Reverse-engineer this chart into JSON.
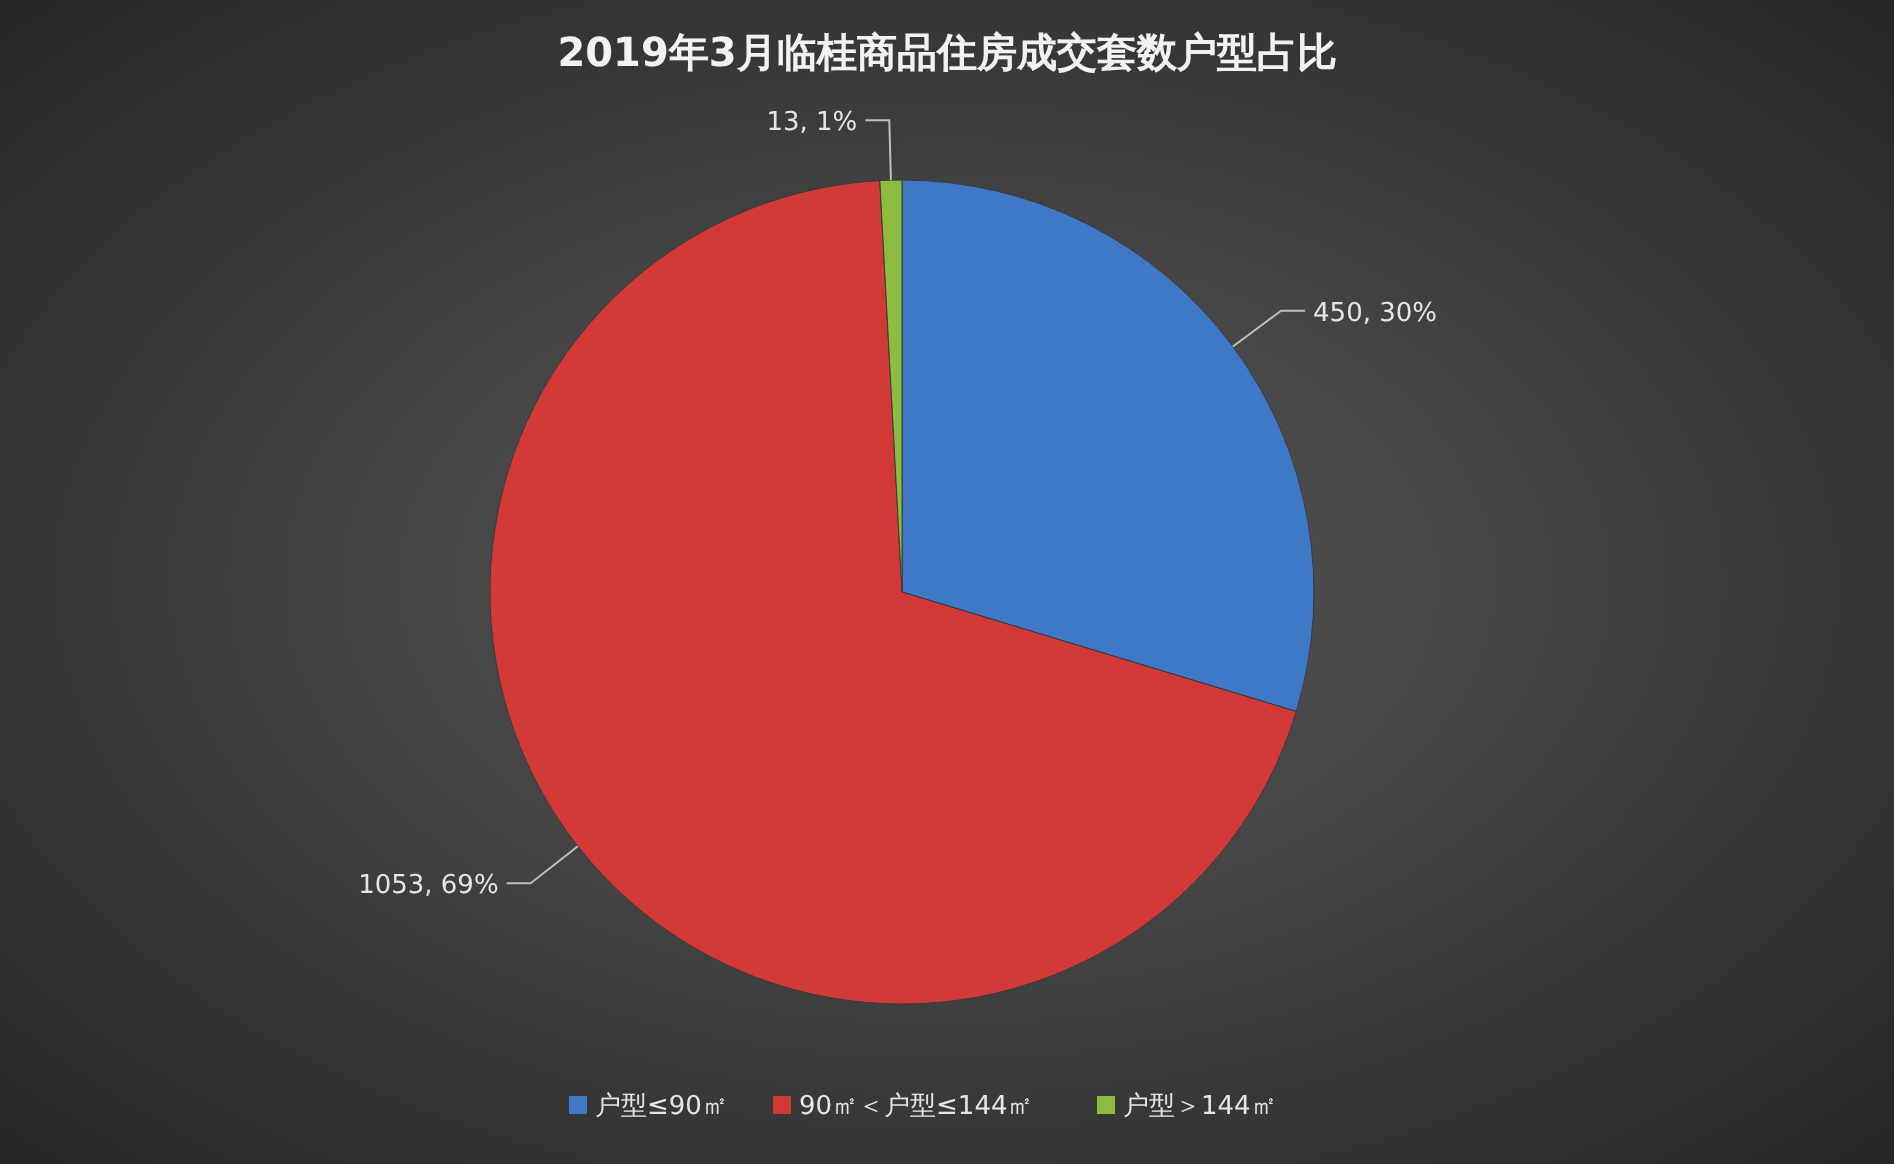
{
  "chart_data": {
    "type": "pie",
    "title": "2019年3月临桂商品住房成交套数户型占比",
    "categories": [
      "户型≤90㎡",
      "90㎡＜户型≤144㎡",
      "户型＞144㎡"
    ],
    "values": [
      450,
      1053,
      13
    ],
    "colors": [
      "#3f78c7",
      "#d33a37",
      "#8dbd3f"
    ],
    "value_labels": [
      "450, 30%",
      "1053, 69%",
      "13, 1%"
    ],
    "legend": "bottom"
  }
}
